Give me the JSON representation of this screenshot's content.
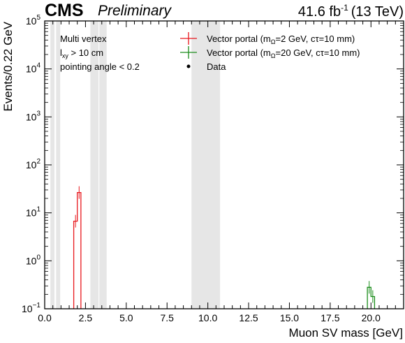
{
  "header": {
    "experiment": "CMS",
    "status": "Preliminary",
    "lumi": "41.6 fb",
    "lumi_exp": "-1",
    "energy": "(13 TeV)"
  },
  "annotations": [
    "Multi vertex",
    "pointing angle < 0.2"
  ],
  "selection": {
    "base": "l",
    "sub": "xy",
    "rest": " >  10 cm"
  },
  "legend": [
    {
      "pre": "Vector portal (m",
      "sub": "Ω",
      "post": "=2 GeV, cτ=10 mm)",
      "color": "#e8171d",
      "marker": "cross"
    },
    {
      "pre": "Vector portal (m",
      "sub": "Ω",
      "post": "=20 GeV, cτ=10 mm)",
      "color": "#1a8c1a",
      "marker": "cross"
    },
    {
      "pre": "Data",
      "sub": "",
      "post": "",
      "color": "#000000",
      "marker": "dot"
    }
  ],
  "chart_data": {
    "type": "histogram",
    "xlabel": "Muon SV mass [GeV]",
    "ylabel": "Events/0.22 GeV",
    "xlim": [
      0,
      22
    ],
    "ylim": [
      0.1,
      100000
    ],
    "yscale": "log",
    "x_ticks": [
      "0.0",
      "2.5",
      "5.0",
      "7.5",
      "10.0",
      "12.5",
      "15.0",
      "17.5",
      "20.0"
    ],
    "y_ticks": [
      {
        "base": "10",
        "exp": "−1"
      },
      {
        "base": "10",
        "exp": "0"
      },
      {
        "base": "10",
        "exp": "1"
      },
      {
        "base": "10",
        "exp": "2"
      },
      {
        "base": "10",
        "exp": "3"
      },
      {
        "base": "10",
        "exp": "4"
      },
      {
        "base": "10",
        "exp": "5"
      }
    ],
    "masked_regions": [
      [
        0.35,
        0.6
      ],
      [
        0.7,
        0.95
      ],
      [
        2.8,
        3.3
      ],
      [
        3.35,
        3.8
      ],
      [
        9.0,
        10.75
      ]
    ],
    "mask_color": "#e6e6e6",
    "series": [
      {
        "name": "Vector portal (mΩ=2 GeV, cτ=10 mm)",
        "color": "#e8171d",
        "bins": [
          [
            1.78,
            2.0,
            6.7
          ],
          [
            2.0,
            2.22,
            26.5
          ]
        ]
      },
      {
        "name": "Vector portal (mΩ=20 GeV, cτ=10 mm)",
        "color": "#1a8c1a",
        "bins": [
          [
            19.78,
            20.0,
            0.28
          ],
          [
            20.0,
            20.22,
            0.18
          ]
        ]
      }
    ],
    "data_points": []
  }
}
